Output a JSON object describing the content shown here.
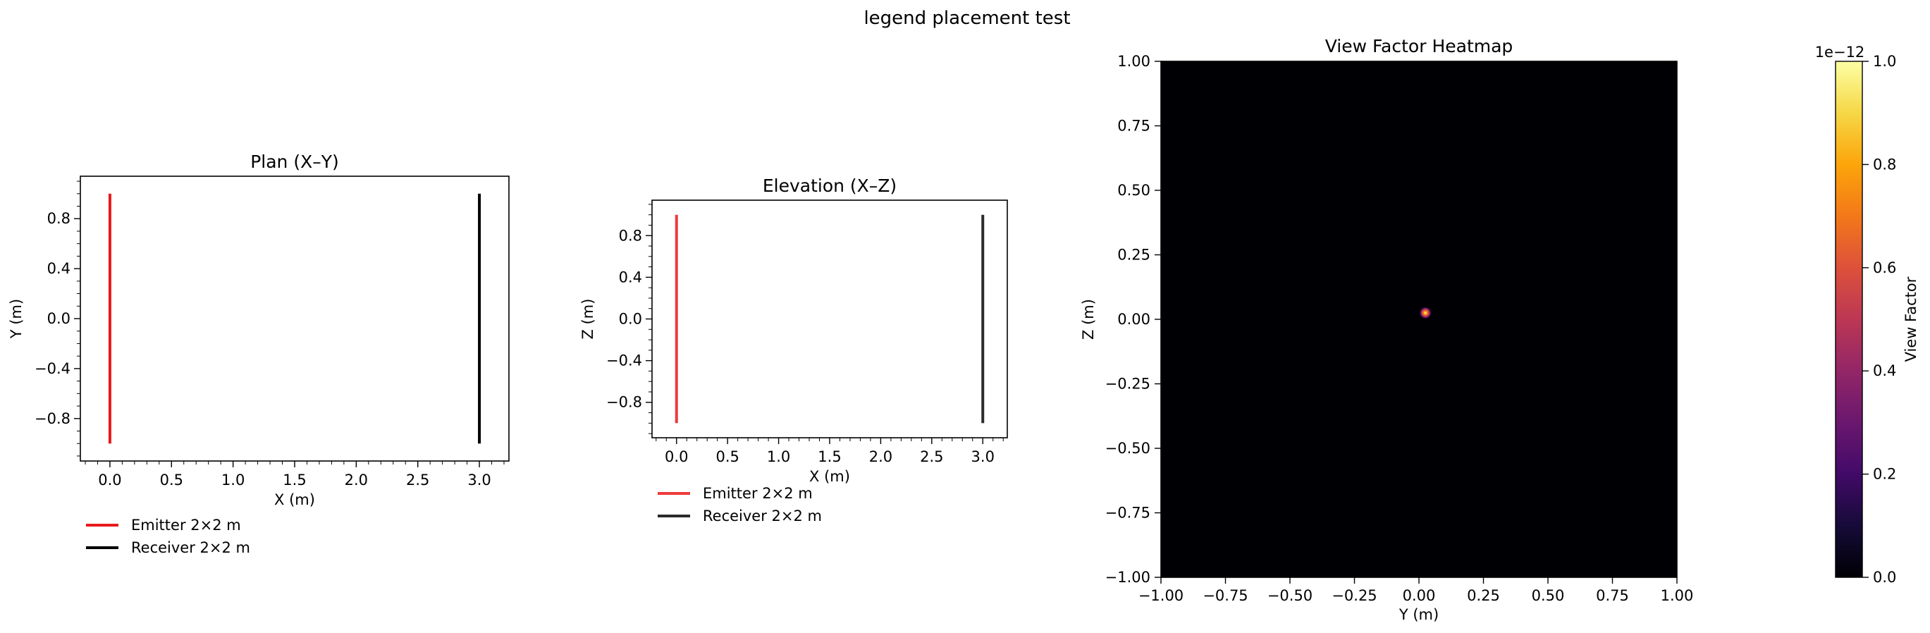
{
  "figure": {
    "suptitle": "legend placement test"
  },
  "colors": {
    "emitter": "#e8191b",
    "receiver": "#000000",
    "elev_emitter": "#ef3a3a",
    "elev_receiver": "#2b2b2b"
  },
  "chart_data": [
    {
      "id": "plan",
      "type": "line",
      "title": "Plan (X–Y)",
      "xlabel": "X (m)",
      "ylabel": "Y (m)",
      "xlim": [
        -0.24,
        3.24
      ],
      "ylim": [
        -1.14,
        1.14
      ],
      "xticks": [
        0.0,
        0.5,
        1.0,
        1.5,
        2.0,
        2.5,
        3.0
      ],
      "xtick_labels": [
        "0.0",
        "0.5",
        "1.0",
        "1.5",
        "2.0",
        "2.5",
        "3.0"
      ],
      "yticks": [
        -0.8,
        -0.4,
        0.0,
        0.4,
        0.8
      ],
      "ytick_labels": [
        "−0.8",
        "−0.4",
        "0.0",
        "0.4",
        "0.8"
      ],
      "legend": {
        "placement": "below"
      },
      "series": [
        {
          "name": "Emitter 2×2 m",
          "x": [
            0,
            0
          ],
          "y": [
            -1,
            1
          ],
          "color": "#e8191b"
        },
        {
          "name": "Receiver 2×2 m",
          "x": [
            3,
            3
          ],
          "y": [
            -1,
            1
          ],
          "color": "#000000"
        }
      ]
    },
    {
      "id": "elevation",
      "type": "line",
      "title": "Elevation (X–Z)",
      "xlabel": "X (m)",
      "ylabel": "Z (m)",
      "xlim": [
        -0.24,
        3.24
      ],
      "ylim": [
        -1.14,
        1.14
      ],
      "xticks": [
        0.0,
        0.5,
        1.0,
        1.5,
        2.0,
        2.5,
        3.0
      ],
      "xtick_labels": [
        "0.0",
        "0.5",
        "1.0",
        "1.5",
        "2.0",
        "2.5",
        "3.0"
      ],
      "yticks": [
        -0.8,
        -0.4,
        0.0,
        0.4,
        0.8
      ],
      "ytick_labels": [
        "−0.8",
        "−0.4",
        "0.0",
        "0.4",
        "0.8"
      ],
      "legend": {
        "placement": "below"
      },
      "series": [
        {
          "name": "Emitter 2×2 m",
          "x": [
            0,
            0
          ],
          "y": [
            -1,
            1
          ],
          "color": "#ef3a3a"
        },
        {
          "name": "Receiver 2×2 m",
          "x": [
            3,
            3
          ],
          "y": [
            -1,
            1
          ],
          "color": "#2b2b2b"
        }
      ]
    },
    {
      "id": "heatmap",
      "type": "heatmap",
      "title": "View Factor Heatmap",
      "xlabel": "Y (m)",
      "ylabel": "Z (m)",
      "xlim": [
        -1.0,
        1.0
      ],
      "ylim": [
        -1.0,
        1.0
      ],
      "xticks": [
        -1.0,
        -0.75,
        -0.5,
        -0.25,
        0.0,
        0.25,
        0.5,
        0.75,
        1.0
      ],
      "xtick_labels": [
        "−1.00",
        "−0.75",
        "−0.50",
        "−0.25",
        "0.00",
        "0.25",
        "0.50",
        "0.75",
        "1.00"
      ],
      "yticks": [
        -1.0,
        -0.75,
        -0.5,
        -0.25,
        0.0,
        0.25,
        0.5,
        0.75,
        1.0
      ],
      "ytick_labels": [
        "−1.00",
        "−0.75",
        "−0.50",
        "−0.25",
        "0.00",
        "0.25",
        "0.50",
        "0.75",
        "1.00"
      ],
      "colormap": "inferno",
      "hotspot": {
        "y": 0.025,
        "z": 0.025,
        "peak": 1.0,
        "sigma": 0.022
      },
      "colorbar": {
        "label": "View Factor",
        "range": [
          0.0,
          1.0
        ],
        "ticks": [
          0.0,
          0.2,
          0.4,
          0.6,
          0.8,
          1.0
        ],
        "tick_labels": [
          "0.0",
          "0.2",
          "0.4",
          "0.6",
          "0.8",
          "1.0"
        ],
        "offset_text": "1e−12"
      }
    }
  ]
}
